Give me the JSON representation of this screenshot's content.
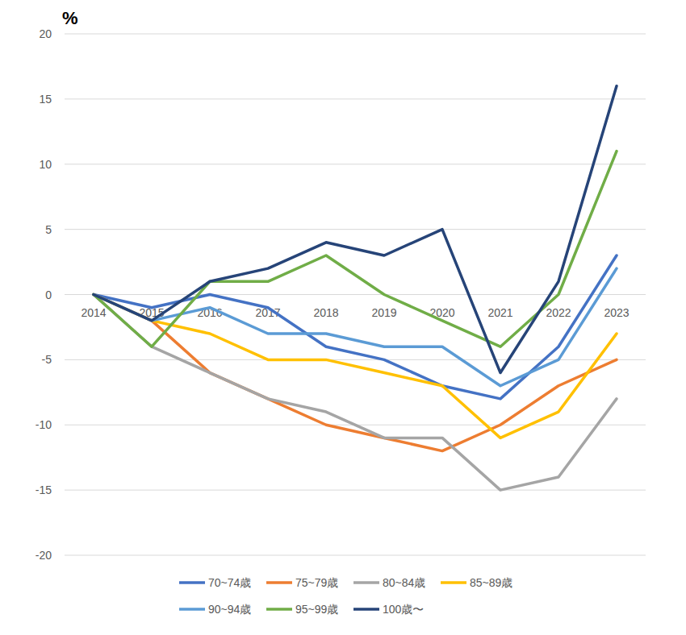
{
  "chart_data": {
    "type": "line",
    "y_label": "%",
    "categories": [
      "2014",
      "2015",
      "2016",
      "2017",
      "2018",
      "2019",
      "2020",
      "2021",
      "2022",
      "2023"
    ],
    "series": [
      {
        "name": "70~74歳",
        "color": "#4472c4",
        "values": [
          0,
          -1,
          0,
          -1,
          -4,
          -5,
          -7,
          -8,
          -4,
          3
        ]
      },
      {
        "name": "75~79歳",
        "color": "#ed7d31",
        "values": [
          0,
          -2,
          -6,
          -8,
          -10,
          -11,
          -12,
          -10,
          -7,
          -5
        ]
      },
      {
        "name": "80~84歳",
        "color": "#a5a5a5",
        "values": [
          0,
          -4,
          -6,
          -8,
          -9,
          -11,
          -11,
          -15,
          -14,
          -8
        ]
      },
      {
        "name": "85~89歳",
        "color": "#ffc000",
        "values": [
          0,
          -2,
          -3,
          -5,
          -5,
          -6,
          -7,
          -11,
          -9,
          -3
        ]
      },
      {
        "name": "90~94歳",
        "color": "#5b9bd5",
        "values": [
          0,
          -2,
          -1,
          -3,
          -3,
          -4,
          -4,
          -7,
          -5,
          2
        ]
      },
      {
        "name": "95~99歳",
        "color": "#70ad47",
        "values": [
          0,
          -4,
          1,
          1,
          3,
          0,
          -2,
          -4,
          0,
          11
        ]
      },
      {
        "name": "100歳〜",
        "color": "#264478",
        "values": [
          0,
          -2,
          1,
          2,
          4,
          3,
          5,
          -6,
          1,
          16
        ]
      }
    ],
    "ylim": [
      -20,
      20
    ],
    "yticks": [
      -20,
      -15,
      -10,
      -5,
      0,
      5,
      10,
      15,
      20
    ],
    "grid": true,
    "legend": "bottom"
  }
}
